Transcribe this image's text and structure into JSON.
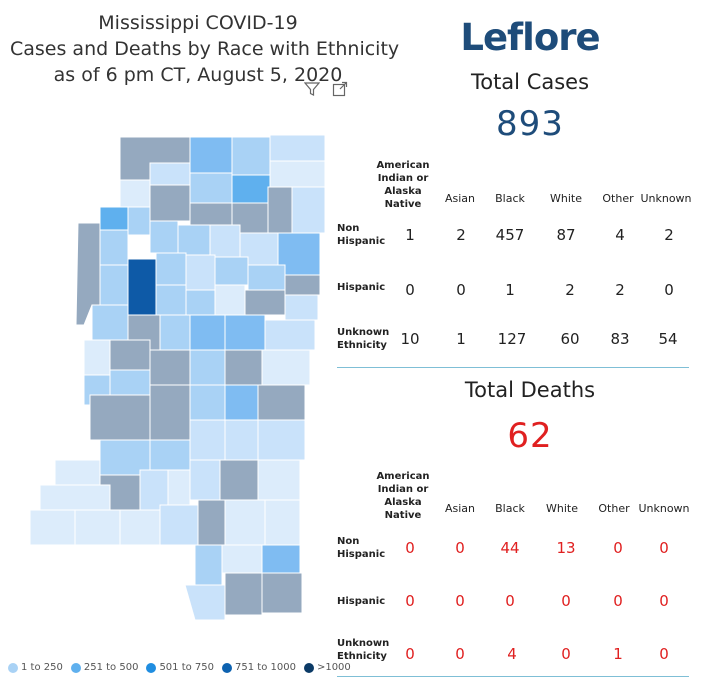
{
  "header": {
    "title_lines": [
      "Mississippi COVID-19",
      "Cases and Deaths by Race with Ethnicity",
      "as of 6 pm CT, August 5, 2020"
    ]
  },
  "toolbar": {
    "filter_icon": "filter-icon",
    "focus_icon": "expand-icon"
  },
  "map": {
    "selected_county_color": "#0e5aa7",
    "legend": [
      {
        "label": "1 to 250",
        "color": "#a9d2f5"
      },
      {
        "label": "251 to 500",
        "color": "#5fb0ee"
      },
      {
        "label": "501 to 750",
        "color": "#1f8de0"
      },
      {
        "label": "751 to 1000",
        "color": "#0d62b0"
      },
      {
        "label": ">1000",
        "color": "#0b3a66"
      }
    ]
  },
  "county": {
    "name": "Leflore"
  },
  "cases": {
    "title": "Total Cases",
    "total": "893",
    "columns": [
      "American Indian or Alaska Native",
      "Asian",
      "Black",
      "White",
      "Other",
      "Unknown"
    ],
    "rows": [
      {
        "label": "Non Hispanic",
        "values": [
          "1",
          "2",
          "457",
          "87",
          "4",
          "2"
        ]
      },
      {
        "label": "Hispanic",
        "values": [
          "0",
          "0",
          "1",
          "2",
          "2",
          "0"
        ]
      },
      {
        "label": "Unknown Ethnicity",
        "values": [
          "10",
          "1",
          "127",
          "60",
          "83",
          "54"
        ]
      }
    ]
  },
  "deaths": {
    "title": "Total Deaths",
    "total": "62",
    "columns": [
      "American Indian or Alaska Native",
      "Asian",
      "Black",
      "White",
      "Other",
      "Unknown"
    ],
    "rows": [
      {
        "label": "Non Hispanic",
        "values": [
          "0",
          "0",
          "44",
          "13",
          "0",
          "0"
        ]
      },
      {
        "label": "Hispanic",
        "values": [
          "0",
          "0",
          "0",
          "0",
          "0",
          "0"
        ]
      },
      {
        "label": "Unknown Ethnicity",
        "values": [
          "0",
          "0",
          "4",
          "0",
          "1",
          "0"
        ]
      }
    ]
  }
}
